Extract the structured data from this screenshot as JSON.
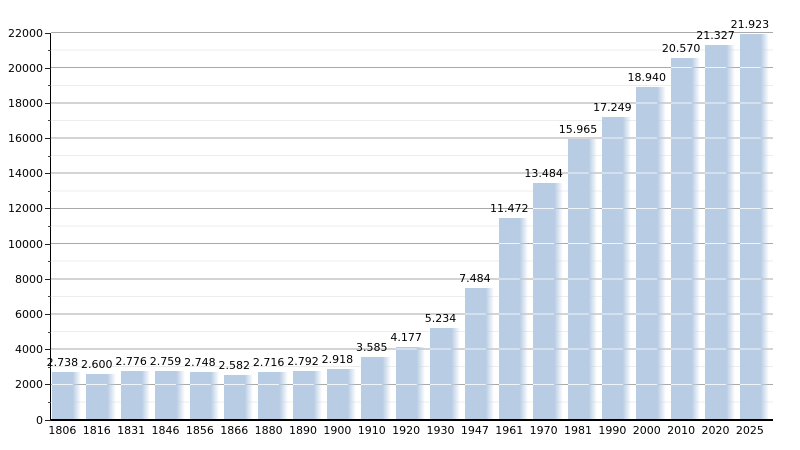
{
  "chart_data": {
    "type": "bar",
    "title": "",
    "categories": [
      "1806",
      "1816",
      "1831",
      "1846",
      "1856",
      "1866",
      "1880",
      "1890",
      "1900",
      "1910",
      "1920",
      "1930",
      "1947",
      "1961",
      "1970",
      "1981",
      "1990",
      "2000",
      "2010",
      "2020",
      "2025"
    ],
    "values": [
      2738,
      2600,
      2776,
      2759,
      2748,
      2582,
      2716,
      2792,
      2918,
      3585,
      4177,
      5234,
      7484,
      11472,
      13484,
      15965,
      17249,
      18940,
      20570,
      21327,
      21923
    ],
    "value_labels": [
      "2.738",
      "2.600",
      "2.776",
      "2.759",
      "2.748",
      "2.582",
      "2.716",
      "2.792",
      "2.918",
      "3.585",
      "4.177",
      "5.234",
      "7.484",
      "11.472",
      "13.484",
      "15.965",
      "17.249",
      "18.940",
      "20.570",
      "21.327",
      "21.923"
    ],
    "xlabel": "",
    "ylabel": "",
    "ylim": [
      0,
      22000
    ],
    "ytick_interval": 2000,
    "yminor_interval": 1000,
    "ytick_labels": [
      "0",
      "2000",
      "4000",
      "6000",
      "8000",
      "10000",
      "12000",
      "14000",
      "16000",
      "18000",
      "20000",
      "22000"
    ],
    "grid": "horizontal-major-and-minor",
    "legend": "none",
    "colors": {
      "bar": "#b8cce4",
      "bar_fade": "rgba(184,204,228,0)",
      "bar_gridline_overlay": "rgba(255,255,255,0.78)",
      "major_grid": "#a9a9a9",
      "minor_grid": "#ededed",
      "axis": "#000000",
      "text": "#000000",
      "background": "#ffffff"
    }
  }
}
